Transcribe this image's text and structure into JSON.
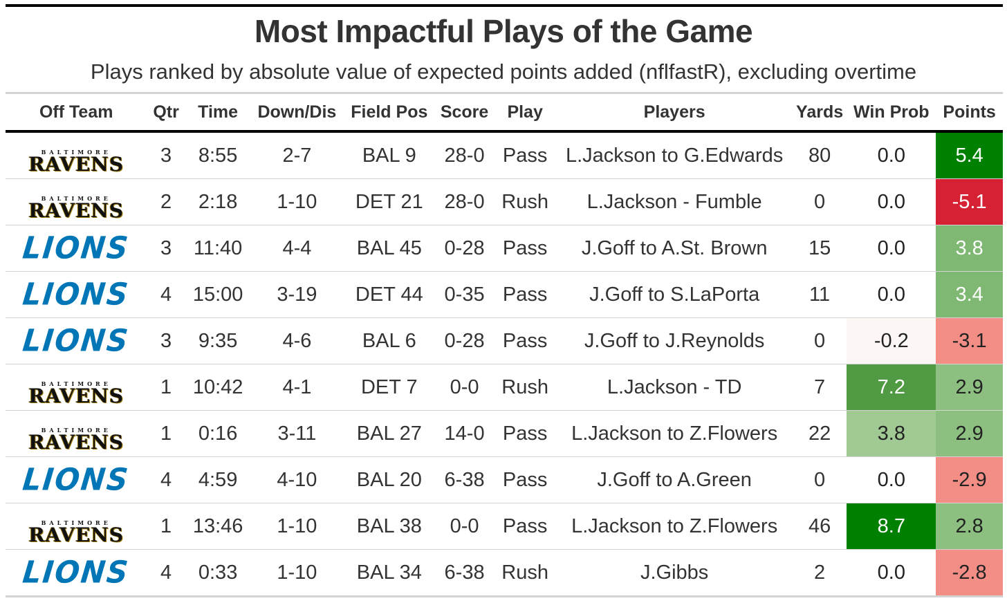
{
  "title": "Most Impactful Plays of the Game",
  "subtitle": "Plays ranked by absolute value of expected points added (nflfastR), excluding overtime",
  "colors": {
    "positive_scale": [
      "#ffffff",
      "#a1c994",
      "#7fb873",
      "#4f9a42",
      "#008000"
    ],
    "negative_scale": [
      "#ffffff",
      "#fcebe9",
      "#f28e86",
      "#d62034"
    ],
    "ravens_text": "#111111",
    "ravens_gold": "#9e7c0c",
    "lions_blue": "#0076b6"
  },
  "chart_data": {
    "type": "table",
    "columns": [
      "Off Team",
      "Qtr",
      "Time",
      "Down/Dis",
      "Field Pos",
      "Score",
      "Play",
      "Players",
      "Yards",
      "Win Prob",
      "Points"
    ],
    "rows": [
      {
        "team": "RAVENS",
        "team_small": "BALTIMORE",
        "team_logo": "ravens-logo",
        "qtr": "3",
        "time": "8:55",
        "down": "2-7",
        "fieldpos": "BAL 9",
        "score": "28-0",
        "play": "Pass",
        "players": "L.Jackson to G.Edwards",
        "yards": "80",
        "winprob": "0.0",
        "points": "5.4"
      },
      {
        "team": "RAVENS",
        "team_small": "BALTIMORE",
        "team_logo": "ravens-logo",
        "qtr": "2",
        "time": "2:18",
        "down": "1-10",
        "fieldpos": "DET 21",
        "score": "28-0",
        "play": "Rush",
        "players": "L.Jackson - Fumble",
        "yards": "0",
        "winprob": "0.0",
        "points": "-5.1"
      },
      {
        "team": "LIONS",
        "team_small": "",
        "team_logo": "lions-logo",
        "qtr": "3",
        "time": "11:40",
        "down": "4-4",
        "fieldpos": "BAL 45",
        "score": "0-28",
        "play": "Pass",
        "players": "J.Goff to A.St. Brown",
        "yards": "15",
        "winprob": "0.0",
        "points": "3.8"
      },
      {
        "team": "LIONS",
        "team_small": "",
        "team_logo": "lions-logo",
        "qtr": "4",
        "time": "15:00",
        "down": "3-19",
        "fieldpos": "DET 44",
        "score": "0-35",
        "play": "Pass",
        "players": "J.Goff to S.LaPorta",
        "yards": "11",
        "winprob": "0.0",
        "points": "3.4"
      },
      {
        "team": "LIONS",
        "team_small": "",
        "team_logo": "lions-logo",
        "qtr": "3",
        "time": "9:35",
        "down": "4-6",
        "fieldpos": "BAL 6",
        "score": "0-28",
        "play": "Pass",
        "players": "J.Goff to J.Reynolds",
        "yards": "0",
        "winprob": "-0.2",
        "points": "-3.1"
      },
      {
        "team": "RAVENS",
        "team_small": "BALTIMORE",
        "team_logo": "ravens-logo",
        "qtr": "1",
        "time": "10:42",
        "down": "4-1",
        "fieldpos": "DET 7",
        "score": "0-0",
        "play": "Rush",
        "players": "L.Jackson - TD",
        "yards": "7",
        "winprob": "7.2",
        "points": "2.9"
      },
      {
        "team": "RAVENS",
        "team_small": "BALTIMORE",
        "team_logo": "ravens-logo",
        "qtr": "1",
        "time": "0:16",
        "down": "3-11",
        "fieldpos": "BAL 27",
        "score": "14-0",
        "play": "Pass",
        "players": "L.Jackson to Z.Flowers",
        "yards": "22",
        "winprob": "3.8",
        "points": "2.9"
      },
      {
        "team": "LIONS",
        "team_small": "",
        "team_logo": "lions-logo",
        "qtr": "4",
        "time": "4:59",
        "down": "4-10",
        "fieldpos": "BAL 20",
        "score": "6-38",
        "play": "Pass",
        "players": "J.Goff to A.Green",
        "yards": "0",
        "winprob": "0.0",
        "points": "-2.9"
      },
      {
        "team": "RAVENS",
        "team_small": "BALTIMORE",
        "team_logo": "ravens-logo",
        "qtr": "1",
        "time": "13:46",
        "down": "1-10",
        "fieldpos": "BAL 38",
        "score": "0-0",
        "play": "Pass",
        "players": "L.Jackson to Z.Flowers",
        "yards": "46",
        "winprob": "8.7",
        "points": "2.8"
      },
      {
        "team": "LIONS",
        "team_small": "",
        "team_logo": "lions-logo",
        "qtr": "4",
        "time": "0:33",
        "down": "1-10",
        "fieldpos": "BAL 34",
        "score": "6-38",
        "play": "Rush",
        "players": "J.Gibbs",
        "yards": "2",
        "winprob": "0.0",
        "points": "-2.8"
      }
    ],
    "cell_fills": {
      "winprob": [
        "#ffffff",
        "#ffffff",
        "#ffffff",
        "#ffffff",
        "#fcf6f5",
        "#4f9a42",
        "#a1c994",
        "#ffffff",
        "#008000",
        "#ffffff"
      ],
      "points": [
        "#008000",
        "#d62034",
        "#7fb873",
        "#7fb873",
        "#f28e86",
        "#8cbf80",
        "#8cbf80",
        "#f28e86",
        "#8cbf80",
        "#f28e86"
      ]
    },
    "cell_text_colors": {
      "winprob": [
        "#222222",
        "#222222",
        "#222222",
        "#222222",
        "#222222",
        "#ffffff",
        "#222222",
        "#222222",
        "#ffffff",
        "#222222"
      ],
      "points": [
        "#ffffff",
        "#ffffff",
        "#ffffff",
        "#ffffff",
        "#222222",
        "#222222",
        "#222222",
        "#222222",
        "#222222",
        "#222222"
      ]
    }
  }
}
